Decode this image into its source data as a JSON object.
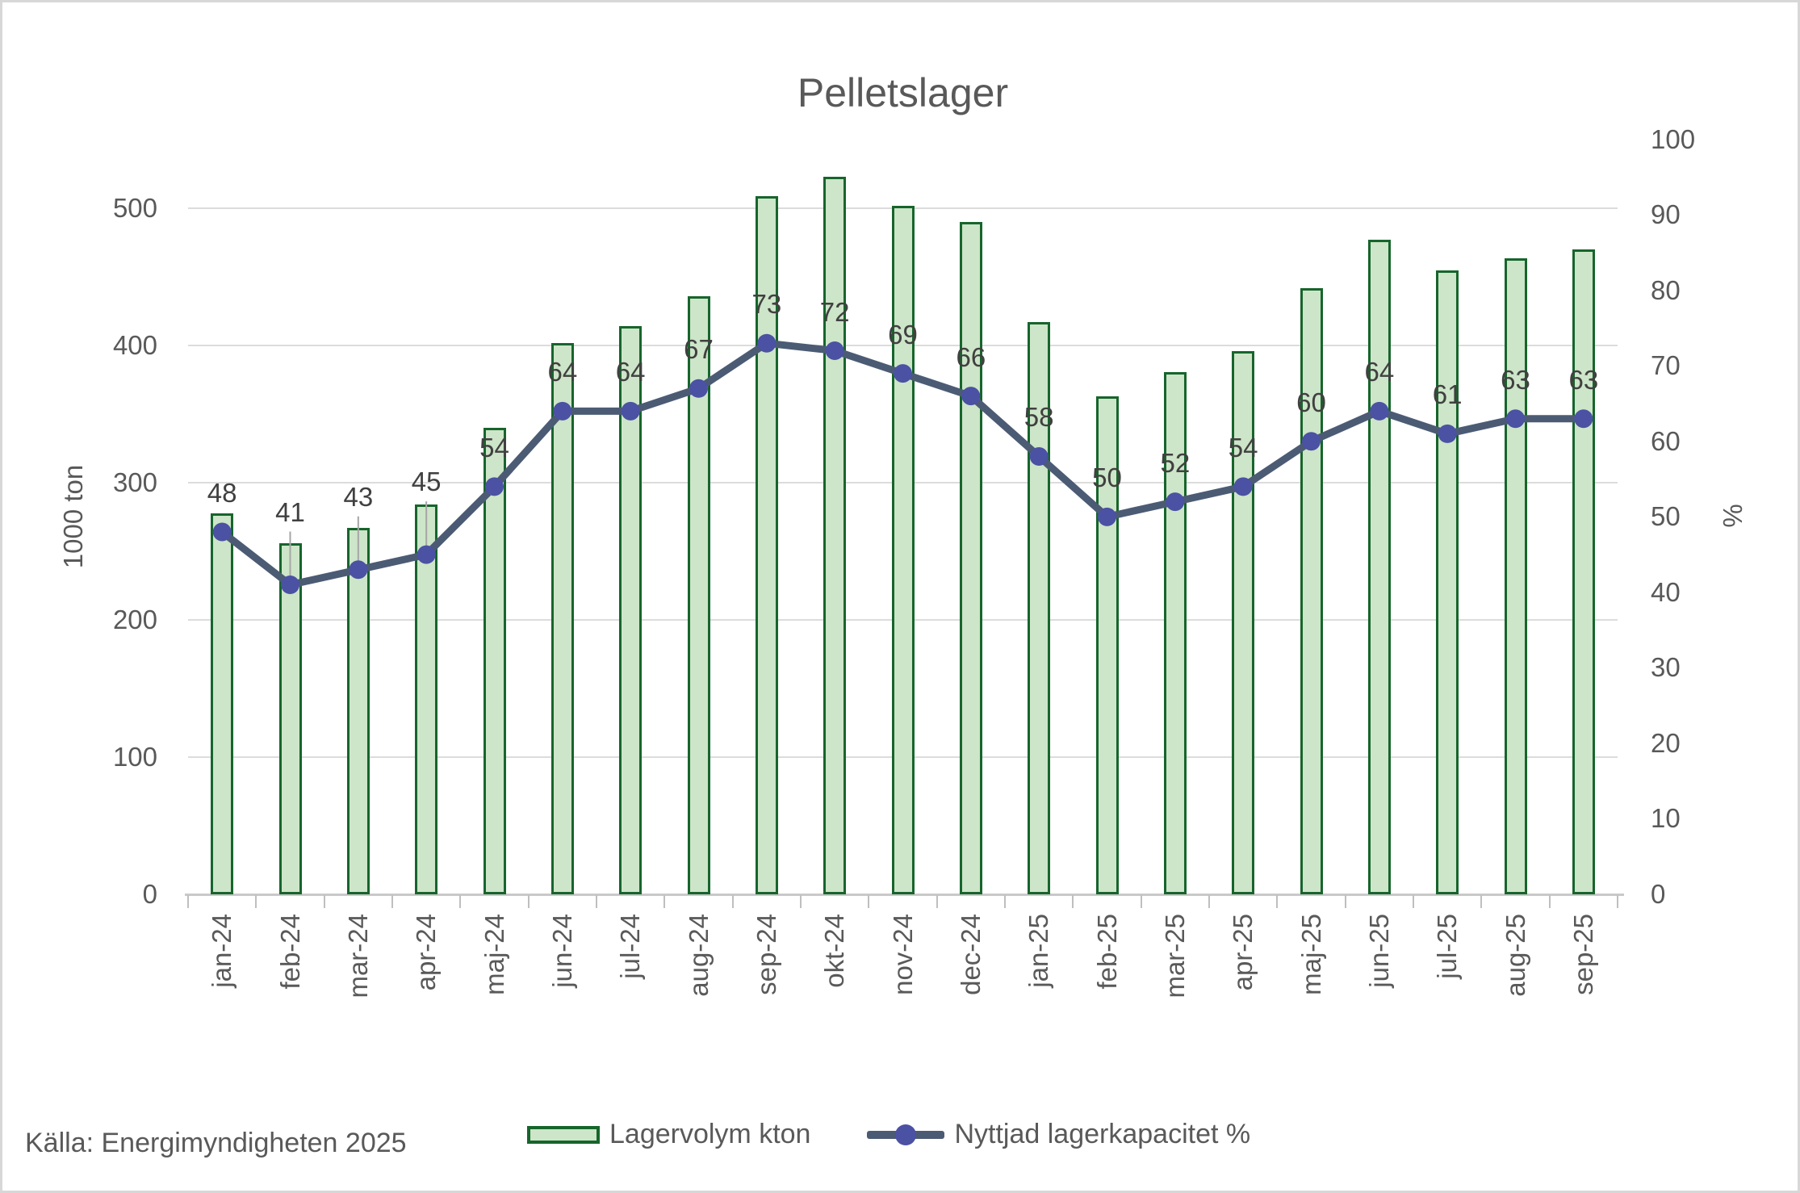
{
  "chart_data": {
    "type": "combo",
    "title": "Pelletslager",
    "categories": [
      "jan-24",
      "feb-24",
      "mar-24",
      "apr-24",
      "maj-24",
      "jun-24",
      "jul-24",
      "aug-24",
      "sep-24",
      "okt-24",
      "nov-24",
      "dec-24",
      "jan-25",
      "feb-25",
      "mar-25",
      "apr-25",
      "maj-25",
      "jun-25",
      "jul-25",
      "aug-25",
      "sep-25"
    ],
    "series": [
      {
        "name": "Lagervolym kton",
        "type": "bar",
        "axis": "left",
        "values": [
          278,
          256,
          267,
          284,
          340,
          402,
          414,
          436,
          509,
          523,
          502,
          490,
          417,
          363,
          381,
          396,
          442,
          477,
          455,
          464,
          470
        ],
        "fill": "#cde5c8",
        "border": "#17652c"
      },
      {
        "name": "Nyttjad lagerkapacitet %",
        "type": "line",
        "axis": "right",
        "values": [
          48,
          41,
          43,
          45,
          54,
          64,
          64,
          67,
          73,
          72,
          69,
          66,
          58,
          50,
          52,
          54,
          60,
          64,
          61,
          63,
          63
        ],
        "line_color": "#4c5b74",
        "marker_color": "#4b51a3",
        "data_labels": true,
        "label_leader_indices": [
          1,
          2,
          3
        ]
      }
    ],
    "axis_left": {
      "label": "1000 ton",
      "ticks": [
        0,
        100,
        200,
        300,
        400,
        500
      ],
      "ylim": [
        0,
        562
      ]
    },
    "axis_right": {
      "label": "%",
      "ticks": [
        0,
        10,
        20,
        30,
        40,
        50,
        60,
        70,
        80,
        90,
        100
      ],
      "ylim": [
        0,
        102.1
      ]
    },
    "grid": true,
    "legend_position": "bottom"
  },
  "source_note": "Källa: Energimyndigheten 2025",
  "colors": {
    "grid": "#dcdcdc",
    "axis_line": "#c9c9c9",
    "tick": "#bfbfbf",
    "text": "#595959",
    "data_label": "#404040",
    "leader": "#a6a6a6",
    "background": "#ffffff",
    "frame_border": "#d7d7d7"
  }
}
